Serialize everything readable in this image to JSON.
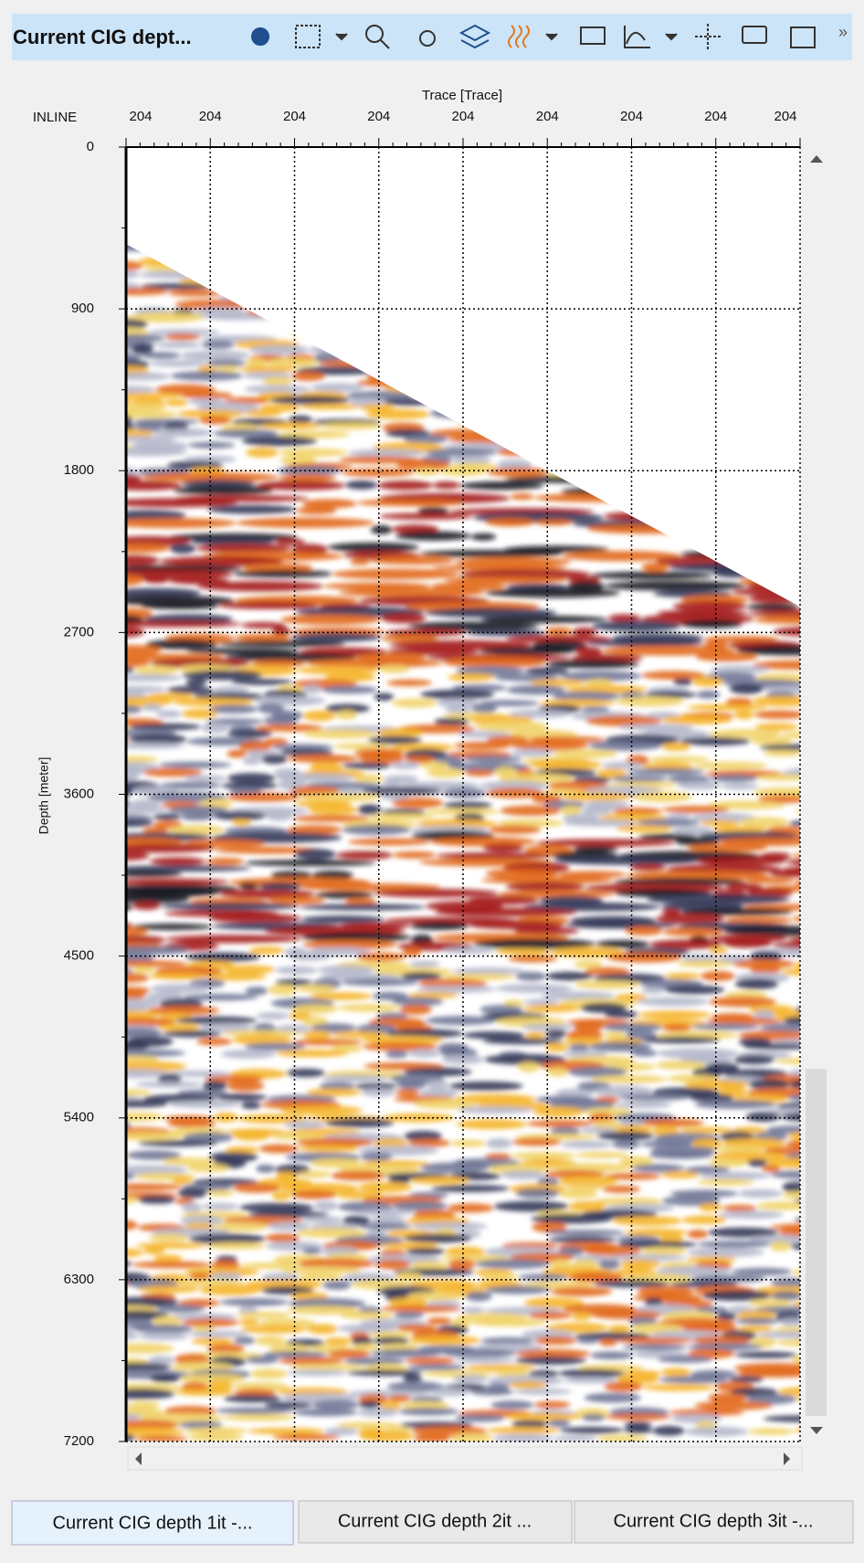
{
  "toolbar": {
    "title": "Current CIG dept..."
  },
  "plot": {
    "x_label": "Trace [Trace]",
    "inline_label": "INLINE",
    "y_label": "Depth [meter]",
    "x_ticks": [
      "204",
      "204",
      "204",
      "204",
      "204",
      "204",
      "204",
      "204",
      "204"
    ],
    "ylim": [
      0,
      7200
    ],
    "yticks": [
      0,
      900,
      1800,
      2700,
      3600,
      4500,
      5400,
      6300,
      7200
    ]
  },
  "tabs": [
    "Current CIG depth 1it -...",
    "Current CIG depth 2it ...",
    "Current CIG depth 3it -..."
  ]
}
